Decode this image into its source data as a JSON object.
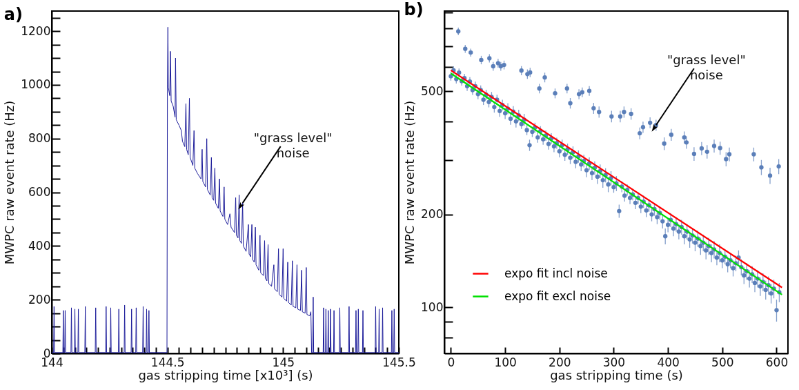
{
  "chart_data": [
    {
      "type": "line",
      "title": "a)",
      "xlabel": "gas stripping time [x10³] (s)",
      "ylabel": "MWPC raw event rate (Hz)",
      "xlim": [
        144,
        145.5
      ],
      "ylim": [
        0,
        1275
      ],
      "xticks": [
        144,
        {
          "value": 144.05,
          "label": null
        },
        {
          "value": 144.1,
          "label": null
        },
        {
          "value": 144.15,
          "label": null
        },
        {
          "value": 144.2,
          "label": null
        },
        {
          "value": 144.25,
          "label": null
        },
        {
          "value": 144.3,
          "label": null
        },
        {
          "value": 144.35,
          "label": null
        },
        {
          "value": 144.4,
          "label": null
        },
        {
          "value": 144.45,
          "label": null
        },
        144.5,
        {
          "value": 144.55,
          "label": null
        },
        {
          "value": 144.6,
          "label": null
        },
        {
          "value": 144.65,
          "label": null
        },
        {
          "value": 144.7,
          "label": null
        },
        {
          "value": 144.75,
          "label": null
        },
        {
          "value": 144.8,
          "label": null
        },
        {
          "value": 144.85,
          "label": null
        },
        {
          "value": 144.9,
          "label": null
        },
        {
          "value": 144.95,
          "label": null
        },
        145,
        {
          "value": 145.05,
          "label": null
        },
        {
          "value": 145.1,
          "label": null
        },
        {
          "value": 145.15,
          "label": null
        },
        {
          "value": 145.2,
          "label": null
        },
        {
          "value": 145.25,
          "label": null
        },
        {
          "value": 145.3,
          "label": null
        },
        {
          "value": 145.35,
          "label": null
        },
        {
          "value": 145.4,
          "label": null
        },
        {
          "value": 145.45,
          "label": null
        },
        145.5
      ],
      "yticks": [
        0,
        {
          "value": 50,
          "label": null
        },
        {
          "value": 100,
          "label": null
        },
        {
          "value": 150,
          "label": null
        },
        200,
        {
          "value": 250,
          "label": null
        },
        {
          "value": 300,
          "label": null
        },
        {
          "value": 350,
          "label": null
        },
        400,
        {
          "value": 450,
          "label": null
        },
        {
          "value": 500,
          "label": null
        },
        {
          "value": 550,
          "label": null
        },
        600,
        {
          "value": 650,
          "label": null
        },
        {
          "value": 700,
          "label": null
        },
        {
          "value": 750,
          "label": null
        },
        800,
        {
          "value": 850,
          "label": null
        },
        {
          "value": 900,
          "label": null
        },
        {
          "value": 950,
          "label": null
        },
        1000,
        {
          "value": 1050,
          "label": null
        },
        {
          "value": 1100,
          "label": null
        },
        {
          "value": 1150,
          "label": null
        },
        1200,
        {
          "value": 1250,
          "label": null
        }
      ],
      "annotations": [
        {
          "text": "\"grass level\" noise",
          "x": 144.825,
          "y": 560
        }
      ],
      "series": [
        {
          "color": "#1c1c9a",
          "x": [
            144,
            144.008,
            144.01,
            144.012,
            144.048,
            144.05,
            144.052,
            144.056,
            144.058,
            144.06,
            144.083,
            144.085,
            144.087,
            144.098,
            144.1,
            144.102,
            144.113,
            144.115,
            144.117,
            144.143,
            144.145,
            144.147,
            144.188,
            144.19,
            144.192,
            144.233,
            144.235,
            144.237,
            144.253,
            144.255,
            144.257,
            144.288,
            144.29,
            144.292,
            144.313,
            144.315,
            144.317,
            144.343,
            144.345,
            144.347,
            144.363,
            144.365,
            144.367,
            144.393,
            144.395,
            144.397,
            144.408,
            144.41,
            144.412,
            144.418,
            144.42,
            144.422,
            144.498,
            144.5,
            144.502,
            144.504,
            144.51,
            144.513,
            144.516,
            144.525,
            144.533,
            144.535,
            144.538,
            144.55,
            144.56,
            144.565,
            144.575,
            144.58,
            144.583,
            144.59,
            144.595,
            144.598,
            144.61,
            144.615,
            144.618,
            144.63,
            144.645,
            144.65,
            144.653,
            144.665,
            144.67,
            144.673,
            144.685,
            144.69,
            144.693,
            144.7,
            144.705,
            144.708,
            144.72,
            144.725,
            144.728,
            144.74,
            144.745,
            144.748,
            144.76,
            144.77,
            144.775,
            144.79,
            144.795,
            144.798,
            144.805,
            144.81,
            144.813,
            144.82,
            144.825,
            144.828,
            144.84,
            144.85,
            144.853,
            144.86,
            144.865,
            144.868,
            144.875,
            144.88,
            144.883,
            144.895,
            144.9,
            144.903,
            144.915,
            144.92,
            144.923,
            144.93,
            144.935,
            144.938,
            144.95,
            144.96,
            144.963,
            144.975,
            144.98,
            144.983,
            144.995,
            145.0,
            145.003,
            145.015,
            145.02,
            145.023,
            145.035,
            145.04,
            145.043,
            145.055,
            145.06,
            145.063,
            145.075,
            145.08,
            145.083,
            145.095,
            145.1,
            145.103,
            145.115,
            145.12,
            145.123,
            145.128,
            145.13,
            145.132,
            145.173,
            145.175,
            145.177,
            145.183,
            145.185,
            145.187,
            145.193,
            145.195,
            145.197,
            145.203,
            145.205,
            145.207,
            145.218,
            145.22,
            145.222,
            145.243,
            145.245,
            145.247,
            145.283,
            145.285,
            145.287,
            145.313,
            145.315,
            145.317,
            145.323,
            145.325,
            145.327,
            145.343,
            145.345,
            145.347,
            145.398,
            145.4,
            145.402,
            145.413,
            145.415,
            145.417,
            145.428,
            145.43,
            145.432,
            145.468,
            145.47,
            145.472,
            145.478,
            145.48,
            145.482,
            145.5
          ],
          "values": [
            3,
            3,
            175,
            3,
            3,
            160,
            3,
            3,
            160,
            3,
            3,
            170,
            3,
            3,
            165,
            3,
            3,
            165,
            3,
            3,
            175,
            3,
            3,
            170,
            3,
            3,
            175,
            3,
            3,
            170,
            3,
            3,
            165,
            3,
            3,
            180,
            3,
            3,
            165,
            3,
            3,
            170,
            3,
            3,
            175,
            3,
            3,
            165,
            3,
            3,
            160,
            3,
            3,
            1000,
            1215,
            990,
            960,
            1125,
            940,
            920,
            880,
            1100,
            870,
            850,
            830,
            790,
            770,
            930,
            760,
            740,
            950,
            730,
            700,
            830,
            690,
            670,
            650,
            760,
            640,
            620,
            800,
            610,
            590,
            730,
            580,
            570,
            690,
            560,
            540,
            650,
            530,
            510,
            620,
            500,
            480,
            520,
            470,
            450,
            580,
            440,
            430,
            590,
            420,
            410,
            560,
            400,
            380,
            480,
            370,
            360,
            480,
            350,
            340,
            470,
            330,
            310,
            440,
            300,
            290,
            420,
            280,
            270,
            405,
            260,
            250,
            330,
            240,
            230,
            390,
            220,
            210,
            390,
            205,
            195,
            340,
            190,
            180,
            345,
            175,
            170,
            330,
            165,
            160,
            310,
            155,
            150,
            320,
            145,
            140,
            155,
            3,
            3,
            210,
            3,
            3,
            170,
            3,
            3,
            165,
            3,
            3,
            160,
            3,
            3,
            165,
            3,
            3,
            160,
            3,
            3,
            170,
            3,
            3,
            175,
            3,
            3,
            160,
            3,
            3,
            165,
            3,
            3,
            160,
            3,
            3,
            175,
            3,
            3,
            165,
            3,
            3,
            170,
            3,
            3,
            160,
            3,
            3,
            165,
            3,
            3
          ]
        }
      ]
    },
    {
      "type": "scatter",
      "title": "b)",
      "xlabel": "gas stripping time (s)",
      "ylabel": "MWPC raw event rate (Hz)",
      "xlim": [
        -12,
        621
      ],
      "ylim": [
        71,
        910
      ],
      "log": true,
      "legend": "bottom left",
      "xticks": [
        0,
        100,
        200,
        300,
        400,
        500,
        600
      ],
      "yticks": [
        {
          "value": 80,
          "label": null
        },
        {
          "value": 90,
          "label": null
        },
        100,
        200,
        {
          "value": 300,
          "label": null
        },
        {
          "value": 400,
          "label": null
        },
        500,
        {
          "value": 600,
          "label": null
        },
        {
          "value": 700,
          "label": null
        },
        {
          "value": 800,
          "label": null
        },
        {
          "value": 900,
          "label": null
        }
      ],
      "annotations": [
        {
          "text": "\"grass level\" noise",
          "x": 378,
          "y": 389
        }
      ],
      "series": [
        {
          "color": "#5b7fb9",
          "marker": "circle",
          "x": [
            0,
            5,
            10,
            15,
            20,
            25,
            30,
            35,
            40,
            45,
            50,
            55,
            60,
            65,
            70,
            75,
            80,
            85,
            90,
            95,
            100,
            105,
            110,
            115,
            120,
            125,
            130,
            135,
            140,
            145,
            150,
            155,
            160,
            165,
            170,
            175,
            180,
            185,
            190,
            195,
            200,
            205,
            210,
            215,
            220,
            225,
            230,
            235,
            240,
            245,
            250,
            255,
            260,
            265,
            270,
            275,
            280,
            285,
            290,
            295,
            300,
            305,
            310,
            315,
            320,
            325,
            330,
            335,
            340,
            345,
            350,
            355,
            360,
            365,
            370,
            375,
            380,
            385,
            390,
            395,
            400,
            405,
            410,
            415,
            420,
            425,
            430,
            435,
            440,
            445,
            450,
            455,
            460,
            465,
            470,
            475,
            480,
            485,
            490,
            495,
            500,
            505,
            510,
            515,
            520,
            525,
            530,
            535,
            540,
            545,
            550,
            555,
            560,
            565,
            570,
            575,
            580,
            585,
            590,
            595,
            600,
            605
          ],
          "values": [
            560,
            585,
            548,
            575,
            540,
            552,
            520,
            538,
            505,
            520,
            490,
            505,
            470,
            488,
            462,
            480,
            445,
            470,
            432,
            452,
            425,
            440,
            408,
            430,
            400,
            418,
            392,
            405,
            375,
            335,
            370,
            382,
            355,
            372,
            350,
            360,
            338,
            352,
            332,
            340,
            320,
            335,
            312,
            325,
            305,
            318,
            296,
            308,
            290,
            298,
            278,
            292,
            272,
            283,
            265,
            276,
            258,
            268,
            250,
            262,
            245,
            252,
            205,
            246,
            230,
            240,
            226,
            232,
            218,
            226,
            212,
            220,
            206,
            214,
            200,
            208,
            196,
            202,
            190,
            170,
            185,
            192,
            180,
            186,
            176,
            182,
            170,
            176,
            166,
            171,
            162,
            167,
            158,
            162,
            153,
            158,
            150,
            154,
            145,
            150,
            142,
            146,
            138,
            142,
            134,
            139,
            145,
            135,
            127,
            131,
            124,
            128,
            120,
            124,
            117,
            121,
            114,
            118,
            111,
            115,
            98,
            112
          ],
          "errors": [
            18,
            18,
            18,
            18,
            18,
            18,
            18,
            18,
            18,
            18,
            18,
            18,
            18,
            18,
            18,
            18,
            18,
            18,
            18,
            18,
            18,
            18,
            18,
            18,
            18,
            18,
            14,
            18,
            14,
            14,
            14,
            14,
            14,
            14,
            14,
            14,
            14,
            14,
            14,
            14,
            14,
            14,
            14,
            14,
            14,
            14,
            14,
            14,
            14,
            14,
            14,
            14,
            14,
            14,
            14,
            14,
            14,
            14,
            14,
            14,
            10,
            14,
            10,
            10,
            10,
            10,
            10,
            10,
            10,
            10,
            10,
            10,
            10,
            10,
            10,
            10,
            10,
            10,
            10,
            10,
            10,
            10,
            10,
            10,
            10,
            10,
            10,
            10,
            10,
            10,
            10,
            10,
            10,
            10,
            10,
            10,
            10,
            10,
            8,
            10,
            8,
            8,
            8,
            8,
            8,
            8,
            8,
            8,
            8,
            8,
            8,
            8,
            8,
            8,
            8,
            8,
            8,
            8,
            8,
            8,
            8,
            8
          ]
        },
        {
          "color": "#5b7fb9",
          "marker": "circle",
          "x": [
            13.7,
            26.5,
            36.6,
            56,
            71,
            78,
            87,
            92,
            98,
            130,
            141,
            146,
            163,
            173,
            192,
            214,
            220,
            236,
            242,
            255,
            263,
            273,
            296,
            312,
            319,
            332,
            348,
            354,
            367,
            378,
            393,
            406,
            430,
            434,
            448,
            462,
            472,
            485,
            496,
            507,
            513,
            558,
            572,
            588,
            604
          ],
          "values": [
            782,
            687,
            668,
            632,
            640,
            603,
            617,
            603,
            609,
            584,
            569,
            576,
            511,
            555,
            493,
            511,
            458,
            490,
            497,
            502,
            441,
            429,
            415,
            415,
            429,
            423,
            366,
            383,
            396,
            389,
            339,
            362,
            355,
            342,
            314,
            327,
            319,
            333,
            328,
            302,
            313,
            313,
            284,
            267,
            286
          ],
          "errors": [
            22,
            20,
            20,
            20,
            20,
            20,
            20,
            20,
            20,
            20,
            20,
            20,
            18,
            20,
            18,
            18,
            18,
            18,
            18,
            18,
            18,
            18,
            18,
            18,
            18,
            18,
            16,
            16,
            16,
            16,
            16,
            16,
            16,
            16,
            16,
            16,
            16,
            16,
            16,
            16,
            16,
            16,
            16,
            16,
            16
          ]
        },
        {
          "type": "line",
          "name": "expo fit incl noise",
          "color": "#ff0000",
          "x": [
            0,
            610
          ],
          "values": [
            585,
            116
          ]
        },
        {
          "type": "line",
          "name": "expo fit excl noise",
          "color": "#00e000",
          "x": [
            0,
            610
          ],
          "values": [
            572,
            110
          ]
        }
      ]
    }
  ]
}
